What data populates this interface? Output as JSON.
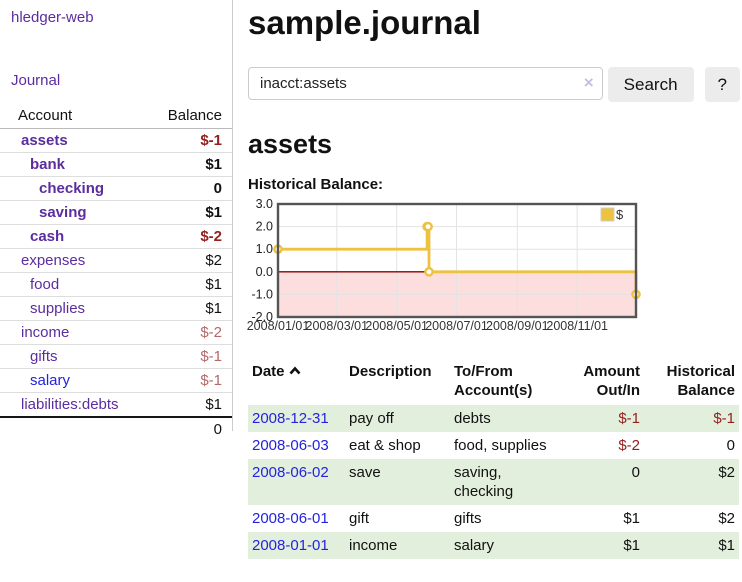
{
  "app": {
    "title": "hledger-web"
  },
  "colors": {
    "accent_purple": "#5b2d9e",
    "link_blue": "#2423dd",
    "negative_red": "#94201e",
    "muted_negative_red": "#b26868",
    "row_green": "#e3efdd",
    "series_yellow": "#edc240",
    "negative_area_pink": "#fcdede",
    "zero_line_maroon": "#8b0000"
  },
  "sidebar": {
    "journal_label": "Journal",
    "table": {
      "headers": {
        "account": "Account",
        "balance": "Balance"
      },
      "accounts": [
        {
          "name": "assets",
          "balance": "$-1"
        },
        {
          "name": "bank",
          "balance": "$1"
        },
        {
          "name": "checking",
          "balance": "0"
        },
        {
          "name": "saving",
          "balance": "$1"
        },
        {
          "name": "cash",
          "balance": "$-2"
        },
        {
          "name": "expenses",
          "balance": "$2"
        },
        {
          "name": "food",
          "balance": "$1"
        },
        {
          "name": "supplies",
          "balance": "$1"
        },
        {
          "name": "income",
          "balance": "$-2"
        },
        {
          "name": "gifts",
          "balance": "$-1"
        },
        {
          "name": "salary",
          "balance": "$-1"
        },
        {
          "name": "liabilities:debts",
          "balance": "$1"
        }
      ],
      "total": "0"
    }
  },
  "main": {
    "title": "sample.journal",
    "search": {
      "value": "inacct:assets",
      "clear_icon": "×",
      "button": "Search",
      "help_button": "?"
    },
    "account_heading": "assets",
    "chart_label": "Historical Balance:",
    "register": {
      "headers": {
        "date": "Date",
        "description": "Description",
        "account": "To/From Account(s)",
        "amount": "Amount Out/In",
        "balance": "Historical Balance"
      },
      "rows": [
        {
          "date": "2008-12-31",
          "description": "pay off",
          "accounts": "debts",
          "amount": "$-1",
          "balance": "$-1"
        },
        {
          "date": "2008-06-03",
          "description": "eat & shop",
          "accounts": "food, supplies",
          "amount": "$-2",
          "balance": "0"
        },
        {
          "date": "2008-06-02",
          "description": "save",
          "accounts": "saving, checking",
          "amount": "0",
          "balance": "$2"
        },
        {
          "date": "2008-06-01",
          "description": "gift",
          "accounts": "gifts",
          "amount": "$1",
          "balance": "$2"
        },
        {
          "date": "2008-01-01",
          "description": "income",
          "accounts": "salary",
          "amount": "$1",
          "balance": "$1"
        }
      ]
    }
  },
  "chart_data": {
    "type": "line",
    "title": "Historical Balance:",
    "series": [
      {
        "name": "$",
        "color": "#edc240",
        "step": true,
        "marker": "circle",
        "points": [
          [
            "2008-01-01",
            1
          ],
          [
            "2008-06-01",
            2
          ],
          [
            "2008-06-02",
            2
          ],
          [
            "2008-06-03",
            0
          ],
          [
            "2008-12-31",
            -1
          ]
        ]
      }
    ],
    "x_range": [
      "2008-01-01",
      "2008-12-31"
    ],
    "ylim": [
      -2,
      3
    ],
    "y_ticks": [
      {
        "v": 3,
        "label": "3.0"
      },
      {
        "v": 2,
        "label": "2.0"
      },
      {
        "v": 1,
        "label": "1.0"
      },
      {
        "v": 0,
        "label": "0.0"
      },
      {
        "v": -1,
        "label": "-1.0"
      },
      {
        "v": -2,
        "label": "-2.0"
      }
    ],
    "x_ticks": [
      {
        "date": "2008-01-01",
        "label": "2008/01/01"
      },
      {
        "date": "2008-03-01",
        "label": "2008/03/01"
      },
      {
        "date": "2008-05-01",
        "label": "2008/05/01"
      },
      {
        "date": "2008-07-01",
        "label": "2008/07/01"
      },
      {
        "date": "2008-09-01",
        "label": "2008/09/01"
      },
      {
        "date": "2008-11-01",
        "label": "2008/11/01"
      }
    ],
    "legend": {
      "label": "$",
      "position": "top-right"
    },
    "grid": true,
    "zero_line_color": "#8b0000",
    "negative_region_color": "#fcdede",
    "plot_border_color": "#545454",
    "grid_color": "#e3e3e3"
  }
}
